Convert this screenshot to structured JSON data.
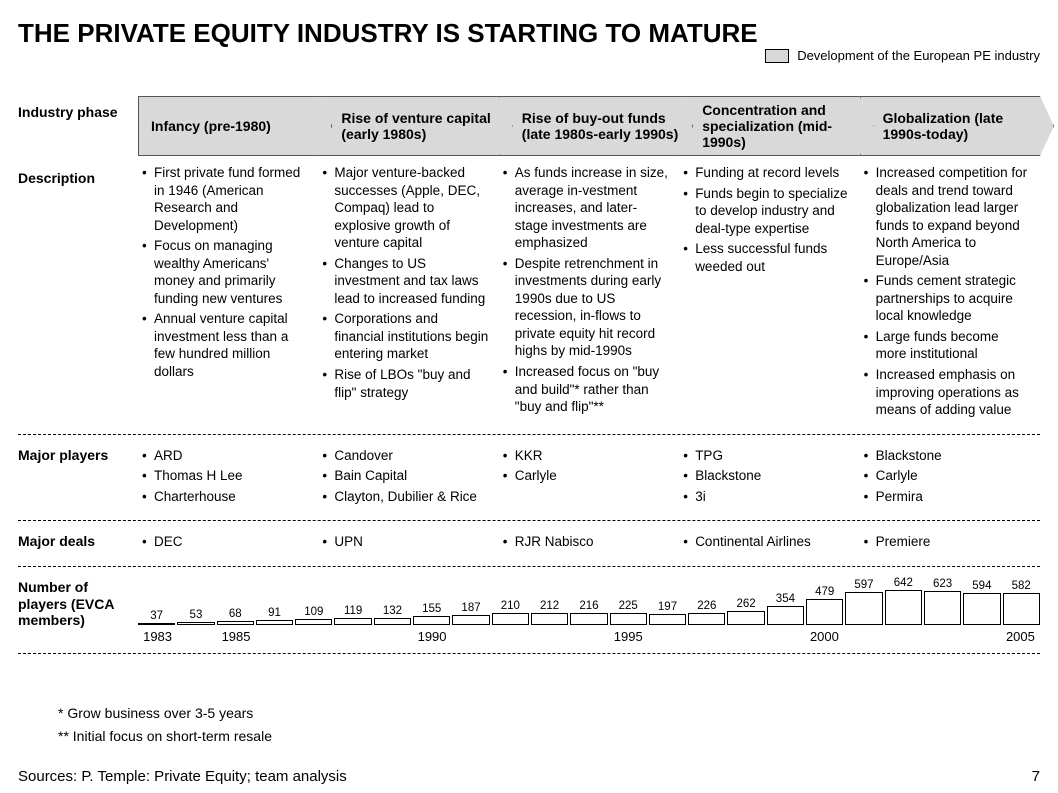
{
  "title": "THE PRIVATE EQUITY INDUSTRY IS STARTING TO MATURE",
  "legend": {
    "label": "Development of the European PE industry",
    "swatch_color": "#d9d9d9"
  },
  "row_labels": {
    "phase": "Industry phase",
    "description": "Description",
    "players": "Major players",
    "deals": "Major deals",
    "chart": "Number of players (EVCA members)"
  },
  "phases": [
    {
      "title": "Infancy (pre-1980)",
      "description": [
        "First private fund formed in 1946 (American Research and Development)",
        "Focus on managing wealthy Americans' money and primarily funding new ventures",
        "Annual venture capital investment less than a few hundred million dollars"
      ],
      "players": [
        "ARD",
        "Thomas H Lee",
        "Charterhouse"
      ],
      "deals": [
        "DEC"
      ]
    },
    {
      "title": "Rise of venture capital (early 1980s)",
      "description": [
        "Major venture-backed successes (Apple, DEC, Compaq) lead to explosive growth of venture capital",
        "Changes to US investment and tax laws lead to increased funding",
        "Corporations and financial institutions begin entering market",
        "Rise of LBOs \"buy and flip\" strategy"
      ],
      "players": [
        "Candover",
        "Bain Capital",
        "Clayton, Dubilier & Rice"
      ],
      "deals": [
        "UPN"
      ]
    },
    {
      "title": "Rise of buy-out funds (late 1980s-early 1990s)",
      "description": [
        "As funds increase in size, average in-vestment increases, and later-stage investments are emphasized",
        "Despite retrenchment in investments during early 1990s due to US recession, in-flows to private equity hit record highs by mid-1990s",
        "Increased focus on \"buy and build\"* rather than \"buy and flip\"**"
      ],
      "players": [
        "KKR",
        "Carlyle"
      ],
      "deals": [
        "RJR Nabisco"
      ]
    },
    {
      "title": "Concentration and specialization (mid-1990s)",
      "description": [
        "Funding at record levels",
        "Funds begin to specialize to develop industry and deal-type expertise",
        "Less successful funds weeded out"
      ],
      "players": [
        "TPG",
        "Blackstone",
        "3i"
      ],
      "deals": [
        "Continental Airlines"
      ]
    },
    {
      "title": "Globalization (late 1990s-today)",
      "description": [
        "Increased competition for deals and trend toward globalization lead larger funds to expand beyond North America to Europe/Asia",
        "Funds cement strategic partnerships to acquire local knowledge",
        "Large funds become more institutional",
        "Increased emphasis on improving operations as means of adding value"
      ],
      "players": [
        "Blackstone",
        "Carlyle",
        "Permira"
      ],
      "deals": [
        "Premiere"
      ]
    }
  ],
  "chart": {
    "type": "bar",
    "years": [
      1983,
      1984,
      1985,
      1986,
      1987,
      1988,
      1989,
      1990,
      1991,
      1992,
      1993,
      1994,
      1995,
      1996,
      1997,
      1998,
      1999,
      2000,
      2001,
      2002,
      2003,
      2004,
      2005
    ],
    "values": [
      37,
      53,
      68,
      91,
      109,
      119,
      132,
      155,
      187,
      210,
      212,
      216,
      225,
      197,
      226,
      262,
      354,
      479,
      597,
      642,
      623,
      594,
      582
    ],
    "bar_fill": "#ffffff",
    "bar_border": "#000000",
    "max_value": 700,
    "value_fontsize": 11.5,
    "year_ticks": [
      {
        "year": 1983,
        "pos_pct": 2.17
      },
      {
        "year": 1985,
        "pos_pct": 10.87
      },
      {
        "year": 1990,
        "pos_pct": 32.6
      },
      {
        "year": 1995,
        "pos_pct": 54.35
      },
      {
        "year": 2000,
        "pos_pct": 76.1
      },
      {
        "year": 2005,
        "pos_pct": 97.83
      }
    ]
  },
  "footnotes": [
    "* Grow business over 3-5 years",
    "** Initial focus on short-term resale"
  ],
  "sources": "Sources: P. Temple: Private Equity; team analysis",
  "page_number": "7",
  "colors": {
    "chevron_bg": "#d9d9d9",
    "chevron_border": "#555555",
    "text": "#000000",
    "background": "#ffffff"
  }
}
